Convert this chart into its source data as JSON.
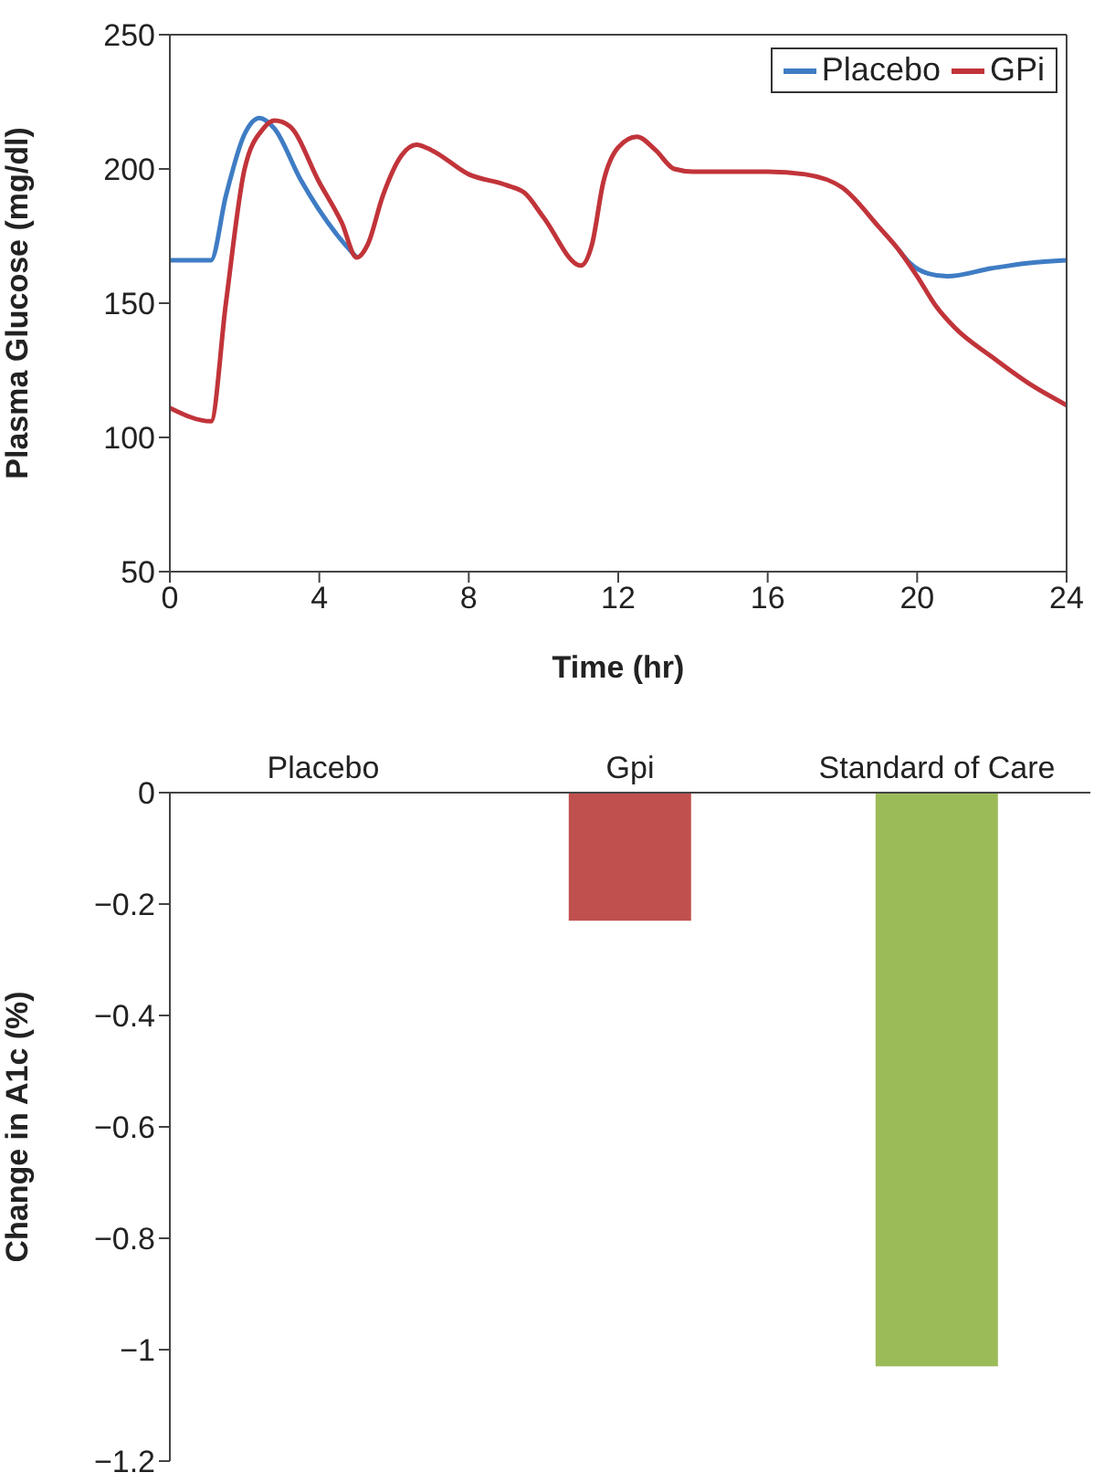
{
  "chart_data": [
    {
      "type": "line",
      "xlabel": "Time (hr)",
      "ylabel": "Plasma Glucose (mg/dl)",
      "xlim": [
        0,
        24
      ],
      "xticks": [
        0,
        4,
        8,
        12,
        16,
        20,
        24
      ],
      "ylim": [
        50,
        250
      ],
      "yticks": [
        50,
        100,
        150,
        200,
        250
      ],
      "legend": "top right",
      "grid": false,
      "marker": "none",
      "series": [
        {
          "name": "Placebo",
          "color": "#3f7cc4",
          "x": [
            0,
            1.1,
            1.5,
            2,
            2.4,
            2.8,
            3.5,
            4.5,
            5,
            5.3,
            5.7,
            6.2,
            6.6,
            7,
            8,
            9,
            9.5,
            10,
            11,
            11.3,
            11.6,
            12,
            12.5,
            13,
            13.5,
            14,
            16,
            17,
            18,
            19,
            19.5,
            19.8,
            20.3,
            20.8,
            22,
            23,
            24
          ],
          "values": [
            166,
            166,
            190,
            213,
            219,
            215,
            196,
            175,
            167,
            null,
            null,
            null,
            null,
            null,
            null,
            null,
            null,
            null,
            null,
            null,
            null,
            null,
            null,
            null,
            null,
            null,
            null,
            null,
            null,
            null,
            170,
            165,
            161,
            160,
            163,
            165,
            166
          ]
        },
        {
          "name": "GPi",
          "color": "#c1343a",
          "x": [
            0,
            1.1,
            1.5,
            2,
            2.5,
            2.8,
            3.2,
            4,
            4.6,
            5,
            5.3,
            5.7,
            6.2,
            6.6,
            7,
            8,
            9,
            9.5,
            10,
            11,
            11.3,
            11.6,
            12,
            12.5,
            13,
            13.5,
            14,
            16,
            17,
            18,
            19,
            19.5,
            20,
            20.5,
            21,
            22,
            23,
            24
          ],
          "values": [
            111,
            106,
            150,
            200,
            215,
            218,
            216,
            195,
            180,
            167,
            172,
            190,
            205,
            209,
            207,
            198,
            194,
            191,
            182,
            164,
            172,
            195,
            208,
            212,
            207,
            200,
            199,
            199,
            198,
            193,
            178,
            170,
            160,
            149,
            141,
            130,
            120,
            112
          ]
        }
      ]
    },
    {
      "type": "bar",
      "ylabel": "Change in A1c (%)",
      "categories": [
        "Placebo",
        "Gpi",
        "Standard of Care"
      ],
      "values": [
        0,
        -0.23,
        -1.03
      ],
      "colors": [
        "#4f81bd",
        "#c0504d",
        "#9bbb59"
      ],
      "ylim": [
        -1.2,
        0
      ],
      "yticks": [
        {
          "value": -1.2,
          "label": "−1.2"
        },
        {
          "value": -1,
          "label": "−1"
        },
        {
          "value": -0.8,
          "label": "−0.8"
        },
        {
          "value": -0.6,
          "label": "−0.6"
        },
        {
          "value": -0.4,
          "label": "−0.4"
        },
        {
          "value": -0.2,
          "label": "−0.2"
        },
        0
      ],
      "grid": false,
      "legend": false
    }
  ]
}
